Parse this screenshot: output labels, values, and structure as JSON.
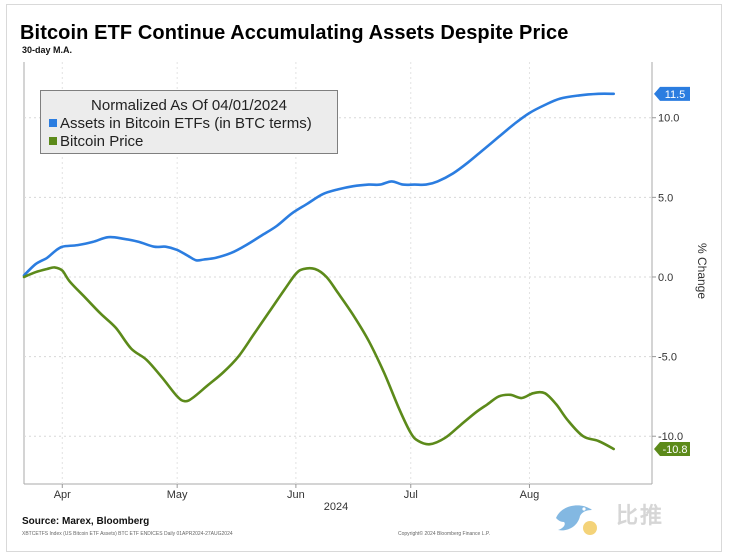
{
  "chart_data": {
    "type": "line",
    "title": "Bitcoin ETF Continue Accumulating Assets Despite Price",
    "subtitle": "30-day M.A.",
    "legend": {
      "title": "Normalized As Of 04/01/2024",
      "placement": "top-left"
    },
    "ylabel": "% Change",
    "ylim": [
      -13.0,
      13.5
    ],
    "yticks": [
      "10.0",
      "5.0",
      "0.0",
      "-5.0",
      "-10.0"
    ],
    "ytick_values": [
      10,
      5,
      0,
      -5,
      -10
    ],
    "xlim": [
      0,
      164
    ],
    "xticks": [
      {
        "label": "Apr",
        "day": 10
      },
      {
        "label": "May",
        "day": 40
      },
      {
        "label": "Jun",
        "day": 71
      },
      {
        "label": "Jul",
        "day": 101
      },
      {
        "label": "Aug",
        "day": 132
      }
    ],
    "x_year_label": "2024",
    "series": [
      {
        "name": "Assets in Bitcoin ETFs (in BTC terms)",
        "color": "#2b7de0",
        "end_label": "11.5",
        "points": [
          [
            0,
            0.1
          ],
          [
            3,
            0.8
          ],
          [
            6,
            1.2
          ],
          [
            8,
            1.6
          ],
          [
            10,
            1.9
          ],
          [
            14,
            2.0
          ],
          [
            18,
            2.2
          ],
          [
            22,
            2.5
          ],
          [
            26,
            2.4
          ],
          [
            30,
            2.2
          ],
          [
            34,
            1.9
          ],
          [
            37,
            1.9
          ],
          [
            40,
            1.7
          ],
          [
            43,
            1.3
          ],
          [
            45,
            1.05
          ],
          [
            47,
            1.1
          ],
          [
            50,
            1.2
          ],
          [
            54,
            1.5
          ],
          [
            58,
            2.0
          ],
          [
            62,
            2.6
          ],
          [
            66,
            3.2
          ],
          [
            70,
            4.0
          ],
          [
            74,
            4.6
          ],
          [
            78,
            5.2
          ],
          [
            82,
            5.5
          ],
          [
            86,
            5.7
          ],
          [
            90,
            5.8
          ],
          [
            93,
            5.8
          ],
          [
            96,
            6.0
          ],
          [
            99,
            5.8
          ],
          [
            102,
            5.8
          ],
          [
            105,
            5.8
          ],
          [
            108,
            6.0
          ],
          [
            112,
            6.5
          ],
          [
            116,
            7.2
          ],
          [
            120,
            8.0
          ],
          [
            124,
            8.8
          ],
          [
            128,
            9.6
          ],
          [
            132,
            10.3
          ],
          [
            136,
            10.8
          ],
          [
            140,
            11.2
          ],
          [
            145,
            11.4
          ],
          [
            150,
            11.5
          ],
          [
            154,
            11.5
          ]
        ]
      },
      {
        "name": "Bitcoin Price",
        "color": "#5c8a1a",
        "end_label": "-10.8",
        "points": [
          [
            0,
            0.0
          ],
          [
            3,
            0.3
          ],
          [
            6,
            0.5
          ],
          [
            8,
            0.6
          ],
          [
            10,
            0.4
          ],
          [
            12,
            -0.3
          ],
          [
            16,
            -1.3
          ],
          [
            20,
            -2.3
          ],
          [
            24,
            -3.2
          ],
          [
            28,
            -4.5
          ],
          [
            32,
            -5.2
          ],
          [
            36,
            -6.3
          ],
          [
            40,
            -7.5
          ],
          [
            42,
            -7.8
          ],
          [
            44,
            -7.6
          ],
          [
            48,
            -6.8
          ],
          [
            52,
            -6.0
          ],
          [
            56,
            -5.0
          ],
          [
            60,
            -3.6
          ],
          [
            64,
            -2.2
          ],
          [
            68,
            -0.8
          ],
          [
            71,
            0.2
          ],
          [
            73,
            0.5
          ],
          [
            76,
            0.5
          ],
          [
            79,
            0.0
          ],
          [
            82,
            -1.0
          ],
          [
            86,
            -2.4
          ],
          [
            90,
            -4.0
          ],
          [
            94,
            -6.0
          ],
          [
            98,
            -8.3
          ],
          [
            101,
            -9.8
          ],
          [
            103,
            -10.3
          ],
          [
            106,
            -10.5
          ],
          [
            110,
            -10.1
          ],
          [
            114,
            -9.3
          ],
          [
            118,
            -8.5
          ],
          [
            121,
            -8.0
          ],
          [
            124,
            -7.5
          ],
          [
            127,
            -7.4
          ],
          [
            130,
            -7.6
          ],
          [
            133,
            -7.3
          ],
          [
            136,
            -7.3
          ],
          [
            139,
            -8.0
          ],
          [
            142,
            -9.0
          ],
          [
            146,
            -10.0
          ],
          [
            150,
            -10.3
          ],
          [
            154,
            -10.8
          ]
        ]
      }
    ]
  },
  "footer": {
    "source": "Source: Marex, Bloomberg",
    "fineprint_left": "XBTCETFS Index (US Bitcoin ETF Assets) BTC ETF ENDICES  Daily 01APR2024-27AUG2024",
    "fineprint_right": "Copyright© 2024 Bloomberg Finance L.P."
  },
  "watermark": {
    "text": "比推",
    "bird_icon": "bird-icon",
    "bird_color": "#5aa0d8"
  }
}
